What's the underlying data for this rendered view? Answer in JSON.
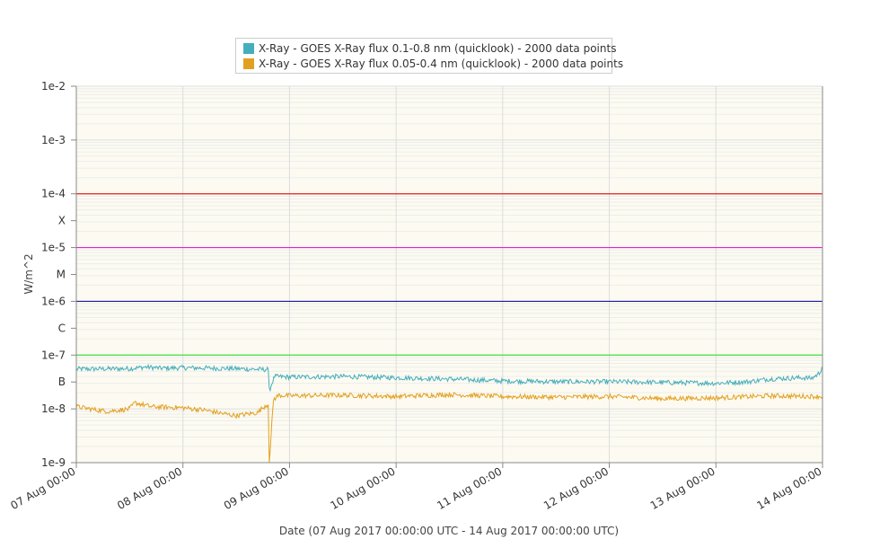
{
  "colors": {
    "series_short": "#45aebd",
    "series_long": "#e3a020",
    "plot_bg": "#fdfbf1",
    "grid_major": "#dcdcdc",
    "grid_minor": "#ececec",
    "level_X": "#e02020",
    "level_M": "#e020e0",
    "level_C": "#1a1aa0",
    "level_B": "#40e040"
  },
  "chart_data": {
    "type": "line",
    "title": "",
    "xlabel": "Date (07 Aug 2017 00:00:00 UTC - 14 Aug 2017 00:00:00 UTC)",
    "ylabel": "W/m^2",
    "y_scale": "log",
    "ylim": [
      1e-09,
      0.01
    ],
    "xlim": [
      "07 Aug 00:00",
      "14 Aug 00:00"
    ],
    "legend_position": "top-center",
    "grid": true,
    "x_ticks": [
      "07 Aug 00:00",
      "08 Aug 00:00",
      "09 Aug 00:00",
      "10 Aug 00:00",
      "11 Aug 00:00",
      "12 Aug 00:00",
      "13 Aug 00:00",
      "14 Aug 00:00"
    ],
    "y_ticks": [
      {
        "label": "1e-9",
        "value": 1e-09
      },
      {
        "label": "1e-8",
        "value": 1e-08
      },
      {
        "label": "B",
        "value": 3.16e-08
      },
      {
        "label": "1e-7",
        "value": 1e-07
      },
      {
        "label": "C",
        "value": 3.16e-07
      },
      {
        "label": "1e-6",
        "value": 1e-06
      },
      {
        "label": "M",
        "value": 3.16e-06
      },
      {
        "label": "1e-5",
        "value": 1e-05
      },
      {
        "label": "X",
        "value": 3.16e-05
      },
      {
        "label": "1e-4",
        "value": 0.0001
      },
      {
        "label": "1e-3",
        "value": 0.001
      },
      {
        "label": "1e-2",
        "value": 0.01
      }
    ],
    "level_lines": [
      {
        "class": "X",
        "value": 0.0001
      },
      {
        "class": "M",
        "value": 1e-05
      },
      {
        "class": "C",
        "value": 1e-06
      },
      {
        "class": "B",
        "value": 1e-07
      }
    ],
    "series": [
      {
        "name": "X-Ray - GOES X-Ray flux 0.1-0.8 nm (quicklook) - 2000 data points",
        "x_days": [
          0,
          0.5,
          0.65,
          0.8,
          1.0,
          1.3,
          1.5,
          1.6,
          1.75,
          1.8,
          1.81,
          1.86,
          2.0,
          2.5,
          3.0,
          3.5,
          4.0,
          4.5,
          5.0,
          5.5,
          6.0,
          6.3,
          6.5,
          6.8,
          6.9,
          6.97,
          7.0
        ],
        "y": [
          5.5e-08,
          5.6e-08,
          6e-08,
          5.7e-08,
          5.8e-08,
          5.7e-08,
          5.6e-08,
          5.5e-08,
          5.4e-08,
          5.4e-08,
          2.2e-08,
          4e-08,
          3.9e-08,
          4e-08,
          3.8e-08,
          3.6e-08,
          3.3e-08,
          3.2e-08,
          3.2e-08,
          3.1e-08,
          3e-08,
          3.2e-08,
          3.6e-08,
          3.8e-08,
          3.7e-08,
          4.6e-08,
          6.2e-08
        ]
      },
      {
        "name": "X-Ray - GOES X-Ray flux 0.05-0.4 nm (quicklook) - 2000 data points",
        "x_days": [
          0,
          0.2,
          0.3,
          0.5,
          0.55,
          0.7,
          1.0,
          1.2,
          1.4,
          1.5,
          1.7,
          1.77,
          1.8,
          1.81,
          1.82,
          1.85,
          1.9,
          2.0,
          2.5,
          3.0,
          3.5,
          4.0,
          4.5,
          5.0,
          5.5,
          6.0,
          6.5,
          7.0
        ],
        "y": [
          1.1e-08,
          9.5e-09,
          9e-09,
          1e-08,
          1.3e-08,
          1.1e-08,
          1.05e-08,
          9.5e-09,
          8e-09,
          7.5e-09,
          8.5e-09,
          1.15e-08,
          1.2e-08,
          1e-09,
          2e-09,
          1.5e-08,
          1.8e-08,
          1.75e-08,
          1.8e-08,
          1.7e-08,
          1.85e-08,
          1.7e-08,
          1.65e-08,
          1.7e-08,
          1.55e-08,
          1.6e-08,
          1.75e-08,
          1.7e-08
        ]
      }
    ]
  }
}
